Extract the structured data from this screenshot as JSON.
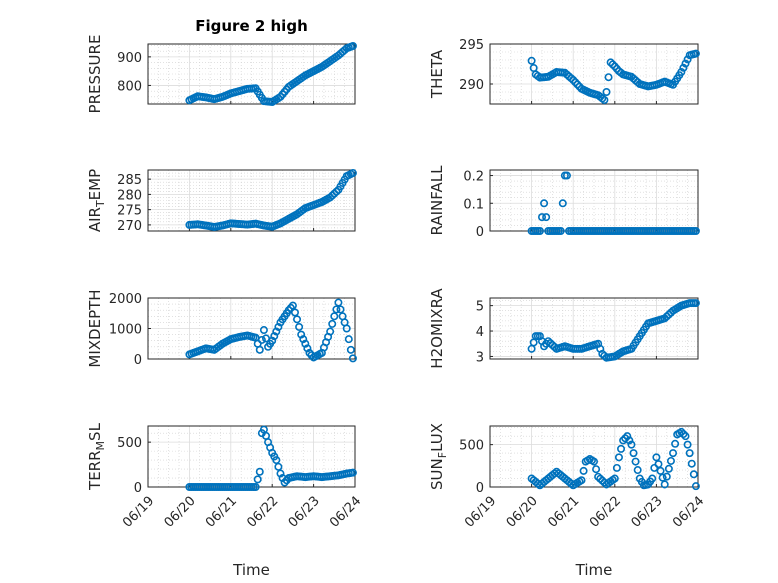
{
  "figure": {
    "title": "Figure 2 high",
    "marker_color": "#0072BD"
  },
  "chart_data": [
    {
      "type": "scatter",
      "title": "Figure 2 high",
      "ylabel": "PRESSURE",
      "ylabel_sub": "",
      "ylabel_tail": "",
      "xlabel": "",
      "xlim": [
        0,
        5
      ],
      "ylim": [
        735,
        945
      ],
      "yticks": [
        800,
        900
      ],
      "xticks": [
        0,
        1,
        2,
        3,
        4,
        5
      ],
      "xticklabels": [],
      "grid": true,
      "x": [
        1.0,
        1.2,
        1.4,
        1.6,
        1.8,
        2.0,
        2.2,
        2.4,
        2.6,
        2.8,
        3.0,
        3.2,
        3.4,
        3.6,
        3.8,
        4.0,
        4.2,
        4.4,
        4.6,
        4.8,
        4.95
      ],
      "y": [
        748,
        762,
        758,
        752,
        760,
        772,
        780,
        788,
        790,
        745,
        742,
        760,
        795,
        815,
        835,
        850,
        865,
        885,
        905,
        930,
        938
      ]
    },
    {
      "type": "scatter",
      "title": "",
      "ylabel": "THETA",
      "ylabel_sub": "",
      "ylabel_tail": "",
      "xlabel": "",
      "xlim": [
        0,
        5
      ],
      "ylim": [
        287.5,
        295
      ],
      "yticks": [
        290,
        295
      ],
      "xticks": [
        0,
        1,
        2,
        3,
        4,
        5
      ],
      "xticklabels": [],
      "grid": true,
      "x": [
        1.0,
        1.05,
        1.1,
        1.2,
        1.4,
        1.6,
        1.8,
        2.0,
        2.2,
        2.4,
        2.6,
        2.75,
        2.8,
        2.9,
        3.0,
        3.1,
        3.2,
        3.4,
        3.6,
        3.8,
        4.0,
        4.1,
        4.2,
        4.3,
        4.4,
        4.6,
        4.8,
        4.95
      ],
      "y": [
        292.9,
        292.0,
        291.2,
        290.8,
        290.9,
        291.5,
        291.4,
        290.5,
        289.4,
        288.9,
        288.6,
        288.0,
        289.0,
        292.7,
        292.2,
        291.6,
        291.2,
        290.9,
        290.0,
        289.7,
        289.9,
        290.1,
        290.3,
        290.1,
        289.9,
        291.5,
        293.6,
        293.8
      ]
    },
    {
      "type": "scatter",
      "title": "",
      "ylabel": "AIR",
      "ylabel_sub": "T",
      "ylabel_tail": "EMP",
      "xlabel": "",
      "xlim": [
        0,
        5
      ],
      "ylim": [
        268,
        288
      ],
      "yticks": [
        270,
        275,
        280,
        285
      ],
      "xticks": [
        0,
        1,
        2,
        3,
        4,
        5
      ],
      "xticklabels": [],
      "grid": true,
      "x": [
        1.0,
        1.2,
        1.4,
        1.6,
        1.8,
        2.0,
        2.2,
        2.4,
        2.6,
        2.8,
        3.0,
        3.2,
        3.4,
        3.6,
        3.8,
        4.0,
        4.2,
        4.4,
        4.6,
        4.8,
        4.95
      ],
      "y": [
        270.0,
        270.2,
        269.8,
        269.3,
        269.8,
        270.5,
        270.3,
        270.1,
        270.4,
        269.8,
        269.4,
        270.5,
        272.0,
        273.5,
        275.5,
        276.5,
        277.5,
        279.0,
        281.5,
        286.0,
        287.0
      ]
    },
    {
      "type": "scatter",
      "title": "",
      "ylabel": "RAINFALL",
      "ylabel_sub": "",
      "ylabel_tail": "",
      "xlabel": "",
      "xlim": [
        0,
        5
      ],
      "ylim": [
        0,
        0.22
      ],
      "yticks": [
        0,
        0.1,
        0.2
      ],
      "xticks": [
        0,
        1,
        2,
        3,
        4,
        5
      ],
      "xticklabels": [],
      "grid": true,
      "x": [
        1.0,
        1.1,
        1.2,
        1.3,
        1.4,
        1.5,
        1.6,
        1.7,
        1.8,
        1.85,
        1.9,
        2.0,
        2.2,
        2.4,
        2.6,
        2.8,
        3.0,
        3.2,
        3.4,
        3.6,
        3.8,
        4.0,
        4.2,
        4.4,
        4.6,
        4.8,
        4.95
      ],
      "y": [
        0,
        0,
        0,
        0.1,
        0,
        0,
        0,
        0,
        0.2,
        0.2,
        0,
        0,
        0,
        0,
        0,
        0,
        0,
        0,
        0,
        0,
        0,
        0,
        0,
        0,
        0,
        0,
        0
      ]
    },
    {
      "type": "scatter",
      "title": "",
      "ylabel": "MIXDEPTH",
      "ylabel_sub": "",
      "ylabel_tail": "",
      "xlabel": "",
      "xlim": [
        0,
        5
      ],
      "ylim": [
        0,
        2000
      ],
      "yticks": [
        0,
        1000,
        2000
      ],
      "xticks": [
        0,
        1,
        2,
        3,
        4,
        5
      ],
      "xticklabels": [],
      "grid": true,
      "x": [
        1.0,
        1.2,
        1.4,
        1.6,
        1.8,
        2.0,
        2.2,
        2.4,
        2.6,
        2.7,
        2.8,
        2.9,
        3.0,
        3.2,
        3.4,
        3.5,
        3.6,
        3.7,
        3.8,
        3.9,
        4.0,
        4.2,
        4.4,
        4.5,
        4.6,
        4.7,
        4.8,
        4.9,
        4.95
      ],
      "y": [
        150,
        250,
        350,
        300,
        500,
        650,
        720,
        770,
        700,
        300,
        950,
        400,
        600,
        1200,
        1600,
        1750,
        1300,
        800,
        500,
        200,
        50,
        200,
        900,
        1400,
        1850,
        1400,
        1000,
        300,
        20
      ]
    },
    {
      "type": "scatter",
      "title": "",
      "ylabel": "H2OMIXRA",
      "ylabel_sub": "",
      "ylabel_tail": "",
      "xlabel": "",
      "xlim": [
        0,
        5
      ],
      "ylim": [
        2.9,
        5.3
      ],
      "yticks": [
        3,
        4,
        5
      ],
      "xticks": [
        0,
        1,
        2,
        3,
        4,
        5
      ],
      "xticklabels": [],
      "grid": true,
      "x": [
        1.0,
        1.1,
        1.2,
        1.3,
        1.4,
        1.6,
        1.8,
        2.0,
        2.2,
        2.4,
        2.6,
        2.7,
        2.8,
        3.0,
        3.2,
        3.4,
        3.6,
        3.8,
        4.0,
        4.2,
        4.4,
        4.6,
        4.8,
        4.95
      ],
      "y": [
        3.3,
        3.8,
        3.8,
        3.4,
        3.6,
        3.3,
        3.4,
        3.3,
        3.3,
        3.4,
        3.5,
        3.1,
        2.95,
        3.0,
        3.2,
        3.3,
        3.8,
        4.3,
        4.4,
        4.5,
        4.8,
        5.0,
        5.1,
        5.1
      ]
    },
    {
      "type": "scatter",
      "title": "",
      "ylabel": "TERR",
      "ylabel_sub": "M",
      "ylabel_tail": "SL",
      "xlabel": "Time",
      "xlim": [
        0,
        5
      ],
      "ylim": [
        0,
        680
      ],
      "yticks": [
        0,
        500
      ],
      "xticks": [
        0,
        1,
        2,
        3,
        4,
        5
      ],
      "xticklabels": [
        "06/19",
        "06/20",
        "06/21",
        "06/22",
        "06/23",
        "06/24"
      ],
      "grid": true,
      "x": [
        1.0,
        1.2,
        1.4,
        1.6,
        1.8,
        2.0,
        2.2,
        2.4,
        2.6,
        2.7,
        2.75,
        2.8,
        2.9,
        3.0,
        3.1,
        3.2,
        3.3,
        3.4,
        3.6,
        3.8,
        4.0,
        4.2,
        4.4,
        4.6,
        4.8,
        4.95
      ],
      "y": [
        0,
        0,
        0,
        0,
        0,
        0,
        0,
        0,
        0,
        170,
        600,
        640,
        500,
        380,
        300,
        150,
        50,
        100,
        120,
        110,
        120,
        110,
        120,
        130,
        150,
        160
      ]
    },
    {
      "type": "scatter",
      "title": "",
      "ylabel": "SUN",
      "ylabel_sub": "F",
      "ylabel_tail": "LUX",
      "xlabel": "Time",
      "xlim": [
        0,
        5
      ],
      "ylim": [
        0,
        720
      ],
      "yticks": [
        0,
        500
      ],
      "xticks": [
        0,
        1,
        2,
        3,
        4,
        5
      ],
      "xticklabels": [
        "06/19",
        "06/20",
        "06/21",
        "06/22",
        "06/23",
        "06/24"
      ],
      "grid": true,
      "x": [
        1.0,
        1.2,
        1.4,
        1.6,
        1.8,
        2.0,
        2.2,
        2.3,
        2.4,
        2.5,
        2.6,
        2.8,
        3.0,
        3.1,
        3.2,
        3.3,
        3.4,
        3.6,
        3.7,
        3.8,
        3.9,
        4.0,
        4.2,
        4.4,
        4.5,
        4.6,
        4.7,
        4.8,
        4.9,
        4.95
      ],
      "y": [
        100,
        20,
        100,
        180,
        100,
        20,
        80,
        300,
        330,
        300,
        120,
        30,
        100,
        350,
        550,
        600,
        500,
        100,
        20,
        30,
        100,
        350,
        30,
        400,
        620,
        650,
        600,
        400,
        150,
        10
      ]
    }
  ]
}
